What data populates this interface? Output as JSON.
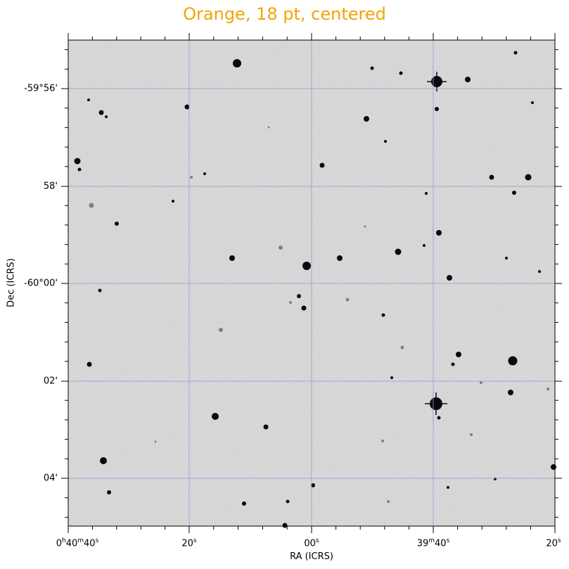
{
  "figure": {
    "title": "Orange, 18 pt, centered",
    "title_color": "#f5a300",
    "grid_color": "#9999dd",
    "background_color": "#c8c8c8",
    "star_color": "#0a0a0a"
  },
  "axes": {
    "x_title": "RA (ICRS)",
    "y_title": "Dec (ICRS)",
    "x_ticks": [
      {
        "label_main": "0",
        "sup1": "h",
        "mid": "40",
        "sup2": "m",
        "tail": "40",
        "sup3": "s"
      },
      {
        "label_main": "20",
        "sup1": "s"
      },
      {
        "label_main": "00",
        "sup1": "s"
      },
      {
        "label_main": "39",
        "sup1": "m",
        "mid": "40",
        "sup2": "s"
      },
      {
        "label_main": "20",
        "sup1": "s"
      }
    ],
    "y_ticks": [
      "-59°56'",
      "58'",
      "-60°00'",
      "02'",
      "04'"
    ]
  }
}
